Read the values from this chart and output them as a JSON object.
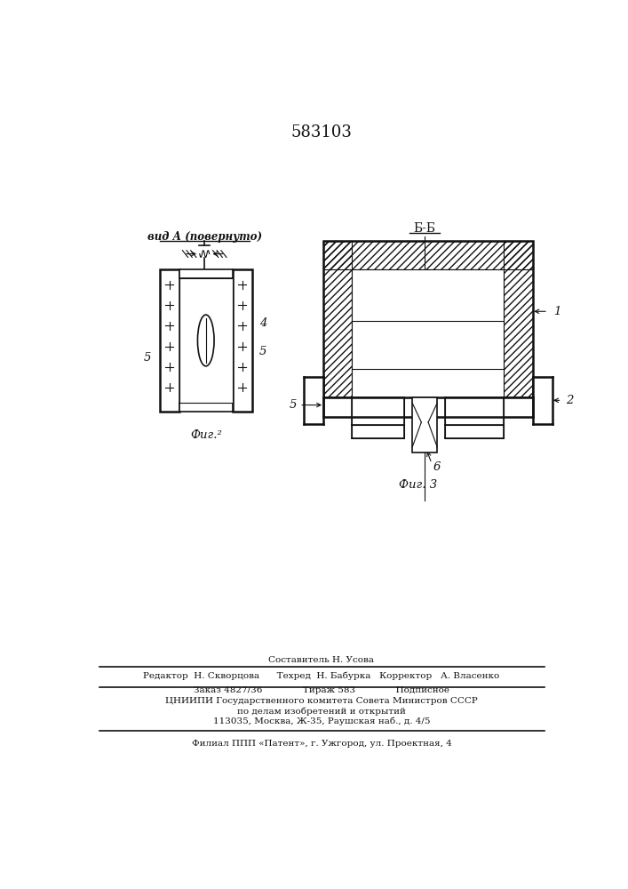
{
  "title": "583103",
  "title_fontsize": 13,
  "background_color": "#ffffff",
  "fig2_label": "Фиг.²",
  "fig3_label": "Фиг. 3",
  "vid_a_label": "вид А (повернуто)",
  "bb_label": "Б-Б",
  "footer_line1": "Составитель Н. Усова",
  "footer_line2": "Редактор  Н. Скворцова      Техред  Н. Бабурка   Корректор   А. Власенко",
  "footer_line3": "Заказ 4827/36              Тираж 583              Подписное",
  "footer_line4": "ЦНИИПИ Государственного комитета Совета Министров СССР",
  "footer_line5": "по делам изобретений и открытий",
  "footer_line6": "113035, Москва, Ж-35, Раушская наб., д. 4/5",
  "footer_line7": "Филиал ППП «Патент», г. Ужгород, ул. Проектная, 4"
}
